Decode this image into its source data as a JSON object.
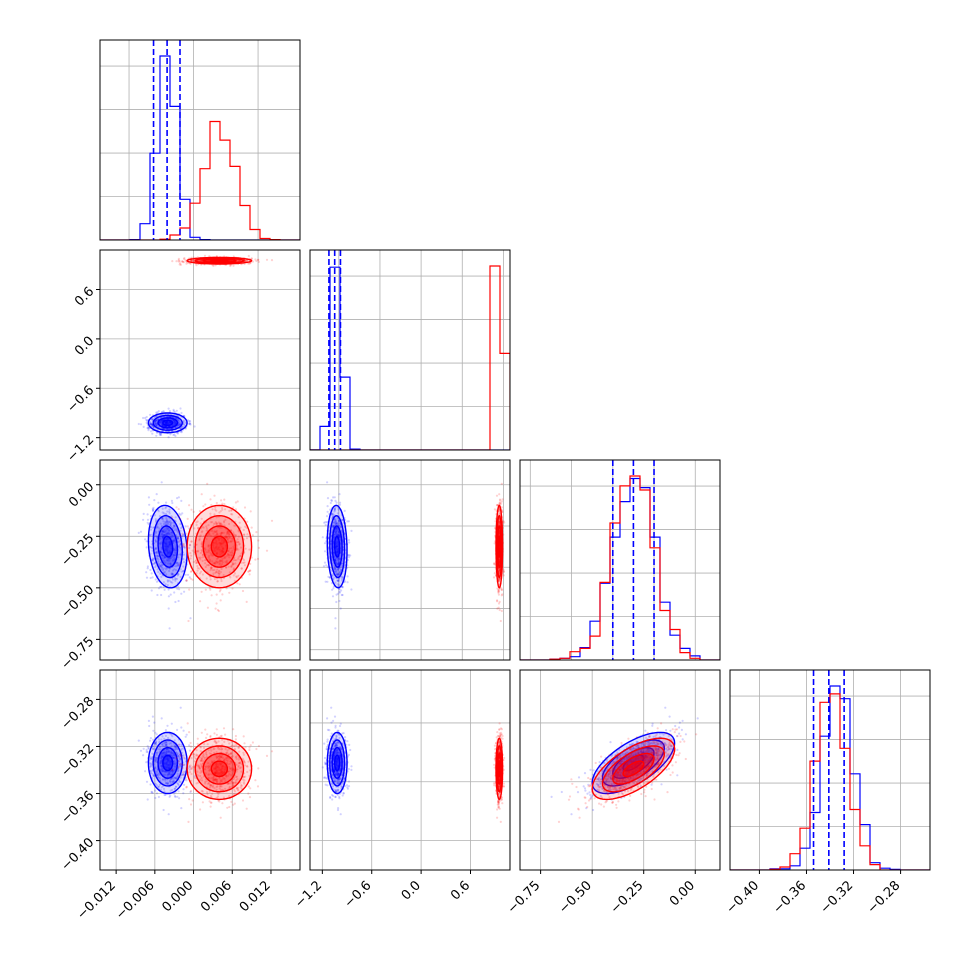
{
  "chart_data": {
    "type": "scatter",
    "kind": "corner-plot",
    "parameters": 4,
    "grid": true,
    "colors": {
      "series_a": "#0000ff",
      "series_b": "#ff0000",
      "grid": "#b0b0b0"
    },
    "series": [
      {
        "color": "#0000ff",
        "means": [
          -0.004,
          -1.02,
          -0.3,
          -0.334
        ],
        "sds": [
          0.0015,
          0.06,
          0.1,
          0.013
        ],
        "quantile_lines": [
          [
            -0.0062,
            -0.0041,
            -0.0021
          ],
          [
            -1.12,
            -1.05,
            -0.98
          ],
          [
            -0.4,
            -0.3,
            -0.2
          ],
          [
            -0.354,
            -0.341,
            -0.328
          ]
        ]
      },
      {
        "color": "#ff0000",
        "means": [
          0.004,
          0.95,
          -0.3,
          -0.339
        ],
        "sds": [
          0.0025,
          0.02,
          0.1,
          0.013
        ]
      }
    ],
    "panels": [
      {
        "kind": "hist",
        "row": 0,
        "col": 0,
        "xlim": [
          -0.0145,
          0.0165
        ]
      },
      {
        "kind": "scatter",
        "row": 1,
        "col": 0,
        "x": 0,
        "y": 1,
        "xlim": [
          -0.0145,
          0.0165
        ],
        "ylim": [
          -1.35,
          1.08
        ],
        "ytick_labels": [
          "0.6",
          "0.0",
          "−0.6",
          "−1.2"
        ],
        "yticks": [
          0.6,
          0.0,
          -0.6,
          -1.2
        ]
      },
      {
        "kind": "hist",
        "row": 1,
        "col": 1,
        "xlim": [
          -1.35,
          1.08
        ]
      },
      {
        "kind": "scatter",
        "row": 2,
        "col": 0,
        "x": 0,
        "y": 2,
        "xlim": [
          -0.0145,
          0.0165
        ],
        "ylim": [
          -0.85,
          0.12
        ],
        "ytick_labels": [
          "0.00",
          "−0.25",
          "−0.50",
          "−0.75"
        ],
        "yticks": [
          0.0,
          -0.25,
          -0.5,
          -0.75
        ]
      },
      {
        "kind": "scatter",
        "row": 2,
        "col": 1,
        "x": 1,
        "y": 2,
        "xlim": [
          -1.35,
          1.08
        ],
        "ylim": [
          -0.85,
          0.12
        ]
      },
      {
        "kind": "hist",
        "row": 2,
        "col": 2,
        "xlim": [
          -0.85,
          0.12
        ]
      },
      {
        "kind": "scatter",
        "row": 3,
        "col": 0,
        "x": 0,
        "y": 3,
        "xlim": [
          -0.0145,
          0.0165
        ],
        "ylim": [
          -0.425,
          -0.255
        ],
        "ytick_labels": [
          "−0.28",
          "−0.32",
          "−0.36",
          "−0.40"
        ],
        "yticks": [
          -0.28,
          -0.32,
          -0.36,
          -0.4
        ],
        "xtick_labels": [
          "−0.012",
          "−0.006",
          "0.000",
          "0.006",
          "0.012"
        ],
        "xticks": [
          -0.012,
          -0.006,
          0.0,
          0.006,
          0.012
        ]
      },
      {
        "kind": "scatter",
        "row": 3,
        "col": 1,
        "x": 1,
        "y": 3,
        "xlim": [
          -1.35,
          1.08
        ],
        "ylim": [
          -0.425,
          -0.255
        ],
        "xtick_labels": [
          "−1.2",
          "−0.6",
          "0.0",
          "0.6"
        ],
        "xticks": [
          -1.2,
          -0.6,
          0.0,
          0.6
        ]
      },
      {
        "kind": "scatter",
        "row": 3,
        "col": 2,
        "x": 2,
        "y": 3,
        "xlim": [
          -0.85,
          0.12
        ],
        "ylim": [
          -0.425,
          -0.255
        ],
        "xtick_labels": [
          "−0.75",
          "−0.50",
          "−0.25",
          "0.00"
        ],
        "xticks": [
          -0.75,
          -0.5,
          -0.25,
          0.0
        ]
      },
      {
        "kind": "hist",
        "row": 3,
        "col": 3,
        "xlim": [
          -0.425,
          -0.255
        ],
        "xtick_labels": [
          "−0.40",
          "−0.36",
          "−0.32",
          "−0.28"
        ],
        "xticks": [
          -0.4,
          -0.36,
          -0.32,
          -0.28
        ]
      }
    ]
  }
}
